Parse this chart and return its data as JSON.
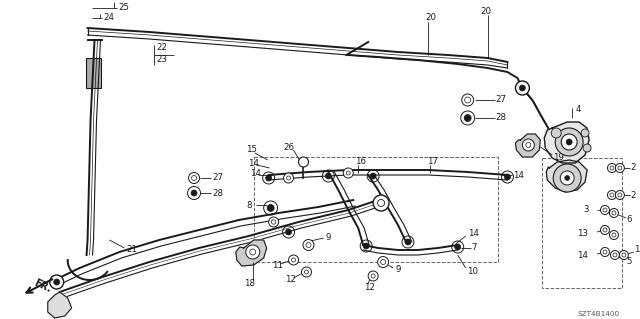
{
  "bg_color": "#ffffff",
  "fig_width": 6.4,
  "fig_height": 3.19,
  "diagram_code": "SZT4B1400",
  "line_color": "#1a1a1a",
  "label_fontsize": 6.2,
  "diagram_code_fontsize": 5.2
}
